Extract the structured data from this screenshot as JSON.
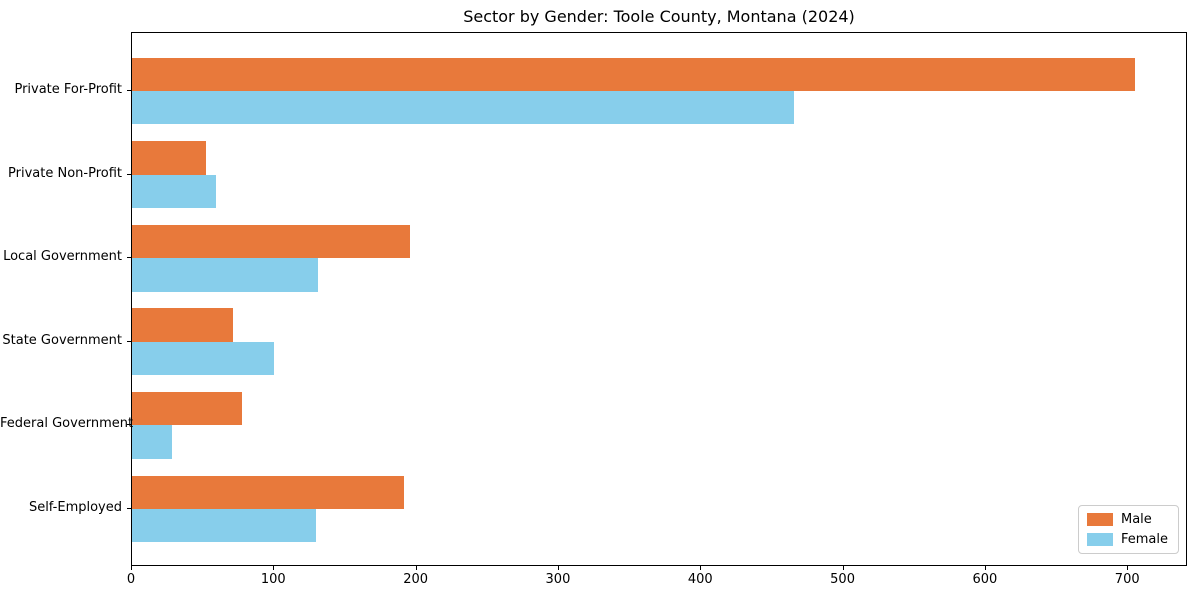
{
  "chart_data": {
    "type": "bar",
    "orientation": "horizontal",
    "title": "Sector by Gender: Toole County, Montana (2024)",
    "categories": [
      "Private For-Profit",
      "Private Non-Profit",
      "Local Government",
      "State Government",
      "Federal Government",
      "Self-Employed"
    ],
    "series": [
      {
        "name": "Male",
        "color": "#e8793b",
        "values": [
          705,
          52,
          195,
          71,
          77,
          191
        ]
      },
      {
        "name": "Female",
        "color": "#87ceeb",
        "values": [
          465,
          59,
          131,
          100,
          28,
          129
        ]
      }
    ],
    "xlabel": "",
    "ylabel": "",
    "xlim": [
      0,
      742
    ],
    "xticks": [
      0,
      100,
      200,
      300,
      400,
      500,
      600,
      700
    ],
    "grid": false,
    "legend_position": "lower right",
    "bar_height_units": 0.4,
    "background_color": "#ffffff",
    "spine_color": "#000000"
  }
}
